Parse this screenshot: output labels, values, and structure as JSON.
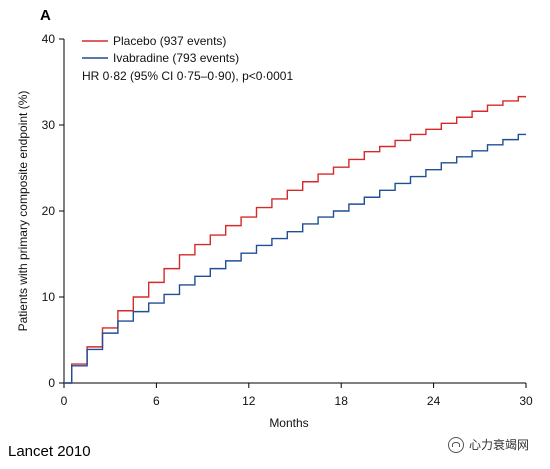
{
  "panel_letter": "A",
  "source_label": "Lancet 2010",
  "watermark_text": "心力衰竭网",
  "colors": {
    "placebo": "#d62a2a",
    "ivabradine": "#1f4f96",
    "axis": "#000000"
  },
  "chart_data": {
    "type": "line",
    "xlabel": "Months",
    "ylabel": "Patients with primary composite endpoint (%)",
    "xlim": [
      0,
      30
    ],
    "ylim": [
      0,
      40
    ],
    "x_ticks": [
      0,
      6,
      12,
      18,
      24,
      30
    ],
    "y_ticks": [
      0,
      10,
      20,
      30,
      40
    ],
    "grid": false,
    "legend_placement": "top-left",
    "annotation": "HR 0·82 (95% CI 0·75–0·90), p<0·0001",
    "series": [
      {
        "name": "Placebo (937 events)",
        "color": "#d62a2a",
        "x": [
          0,
          1,
          2,
          3,
          4,
          5,
          6,
          7,
          8,
          9,
          10,
          11,
          12,
          13,
          14,
          15,
          16,
          17,
          18,
          19,
          20,
          21,
          22,
          23,
          24,
          25,
          26,
          27,
          28,
          29,
          30
        ],
        "y": [
          0,
          2.2,
          4.2,
          6.4,
          8.4,
          10.0,
          11.7,
          13.3,
          14.9,
          16.1,
          17.2,
          18.3,
          19.3,
          20.4,
          21.4,
          22.4,
          23.4,
          24.3,
          25.1,
          26.0,
          26.9,
          27.5,
          28.2,
          28.9,
          29.5,
          30.2,
          30.9,
          31.6,
          32.3,
          32.8,
          33.3
        ]
      },
      {
        "name": "Ivabradine (793 events)",
        "color": "#1f4f96",
        "x": [
          0,
          1,
          2,
          3,
          4,
          5,
          6,
          7,
          8,
          9,
          10,
          11,
          12,
          13,
          14,
          15,
          16,
          17,
          18,
          19,
          20,
          21,
          22,
          23,
          24,
          25,
          26,
          27,
          28,
          29,
          30
        ],
        "y": [
          0,
          2.0,
          3.9,
          5.8,
          7.2,
          8.3,
          9.3,
          10.3,
          11.4,
          12.4,
          13.3,
          14.2,
          15.1,
          16.0,
          16.8,
          17.6,
          18.5,
          19.3,
          20.0,
          20.8,
          21.6,
          22.4,
          23.2,
          24.0,
          24.8,
          25.6,
          26.3,
          27.0,
          27.7,
          28.3,
          28.9
        ]
      }
    ]
  }
}
